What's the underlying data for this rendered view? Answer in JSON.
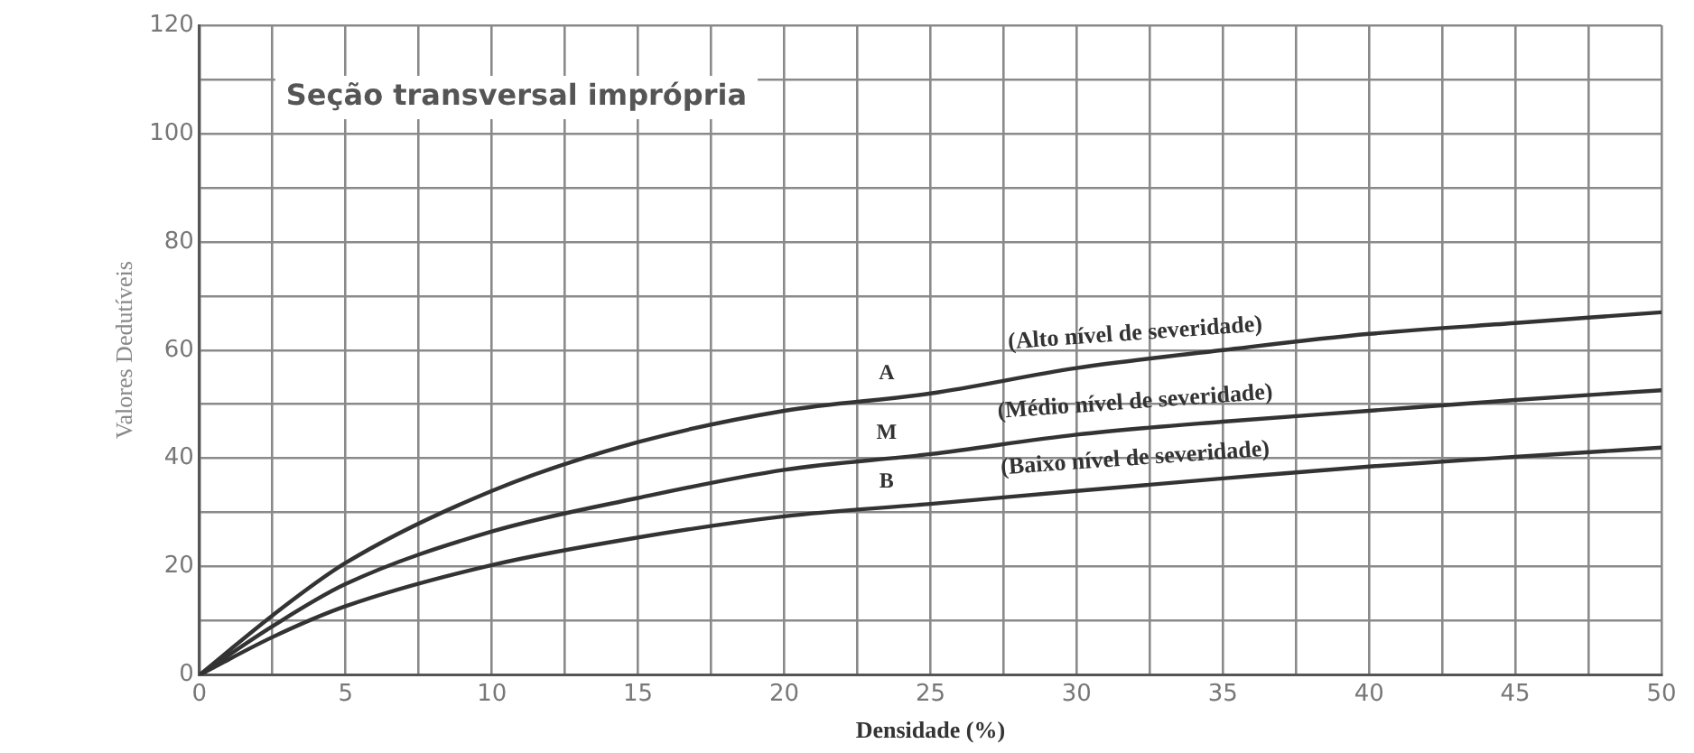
{
  "chart_data": {
    "type": "line",
    "title": "Seção transversal imprópria",
    "xlabel": "Densidade (%)",
    "ylabel": "Valores Dedutíveis",
    "xlim": [
      0,
      50
    ],
    "ylim": [
      0,
      120
    ],
    "xticks": [
      0,
      {
        "value": 2.5,
        "label": null
      },
      5,
      {
        "value": 7.5,
        "label": null
      },
      10,
      {
        "value": 12.5,
        "label": null
      },
      15,
      {
        "value": 17.5,
        "label": null
      },
      20,
      {
        "value": 22.5,
        "label": null
      },
      25,
      {
        "value": 27.5,
        "label": null
      },
      30,
      {
        "value": 32.5,
        "label": null
      },
      35,
      {
        "value": 37.5,
        "label": null
      },
      40,
      {
        "value": 42.5,
        "label": null
      },
      45,
      {
        "value": 47.5,
        "label": null
      },
      50
    ],
    "yticks": [
      0,
      {
        "value": 10,
        "label": null
      },
      20,
      {
        "value": 30,
        "label": null
      },
      40,
      {
        "value": 50,
        "label": null
      },
      60,
      {
        "value": 70,
        "label": null
      },
      80,
      {
        "value": 90,
        "label": null
      },
      100,
      {
        "value": 110,
        "label": null
      },
      120
    ],
    "grid": true,
    "legend": false,
    "marker": "none",
    "line_style": "solid",
    "x": [
      0,
      2.5,
      5,
      10,
      15,
      20,
      25,
      30,
      35,
      40,
      45,
      50
    ],
    "series": [
      {
        "name": "A",
        "color": "#333333",
        "values": [
          0,
          11,
          20.7,
          34,
          43,
          48.8,
          52,
          56.7,
          60,
          63,
          65,
          67
        ]
      },
      {
        "name": "M",
        "color": "#333333",
        "values": [
          0,
          9,
          16.8,
          26.5,
          32.7,
          37.9,
          40.8,
          44.4,
          46.8,
          48.8,
          50.8,
          52.6
        ]
      },
      {
        "name": "B",
        "color": "#333333",
        "values": [
          0,
          7,
          12.7,
          20.3,
          25.4,
          29.3,
          31.6,
          34,
          36.3,
          38.5,
          40.3,
          42
        ]
      }
    ],
    "annotations": [
      "(Alto nível de severidade)",
      "(Médio nível de severidade)",
      "(Baixo nível de severidade)"
    ]
  }
}
